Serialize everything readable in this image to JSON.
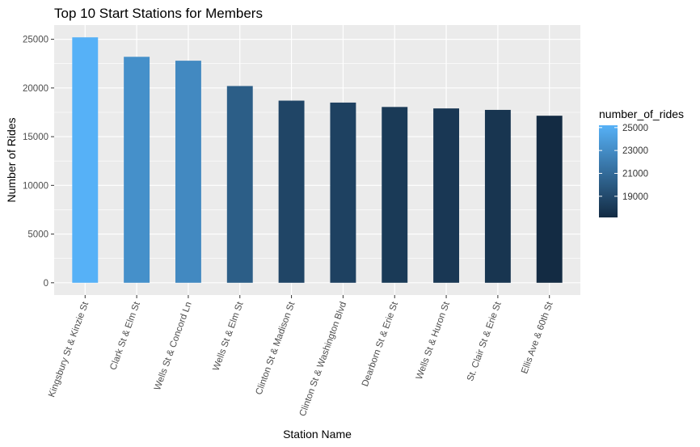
{
  "chart_data": {
    "type": "bar",
    "title": "Top 10 Start Stations for Members",
    "xlabel": "Station Name",
    "ylabel": "Number of Rides",
    "categories": [
      "Kingsbury St & Kinzie St",
      "Clark St & Elm St",
      "Wells St & Concord Ln",
      "Wells St & Elm St",
      "Clinton St & Madison St",
      "Clinton St & Washington Blvd",
      "Dearborn St & Erie St",
      "Wells St & Huron St",
      "St. Clair St & Erie St",
      "Ellis Ave & 60th St"
    ],
    "values": [
      25200,
      23200,
      22800,
      20200,
      18700,
      18500,
      18050,
      17900,
      17750,
      17150
    ],
    "ylim": [
      -1260,
      26460
    ],
    "yticks": [
      0,
      5000,
      10000,
      15000,
      20000,
      25000
    ],
    "grid": true,
    "legend": {
      "title": "number_of_rides",
      "position": "right",
      "range": [
        17150,
        25200
      ],
      "ticks": [
        19000,
        21000,
        23000,
        25000
      ],
      "color_low": "#132B43",
      "color_high": "#56B1F7"
    },
    "panel_background": "#EBEBEB",
    "grid_color": "#FFFFFF"
  }
}
